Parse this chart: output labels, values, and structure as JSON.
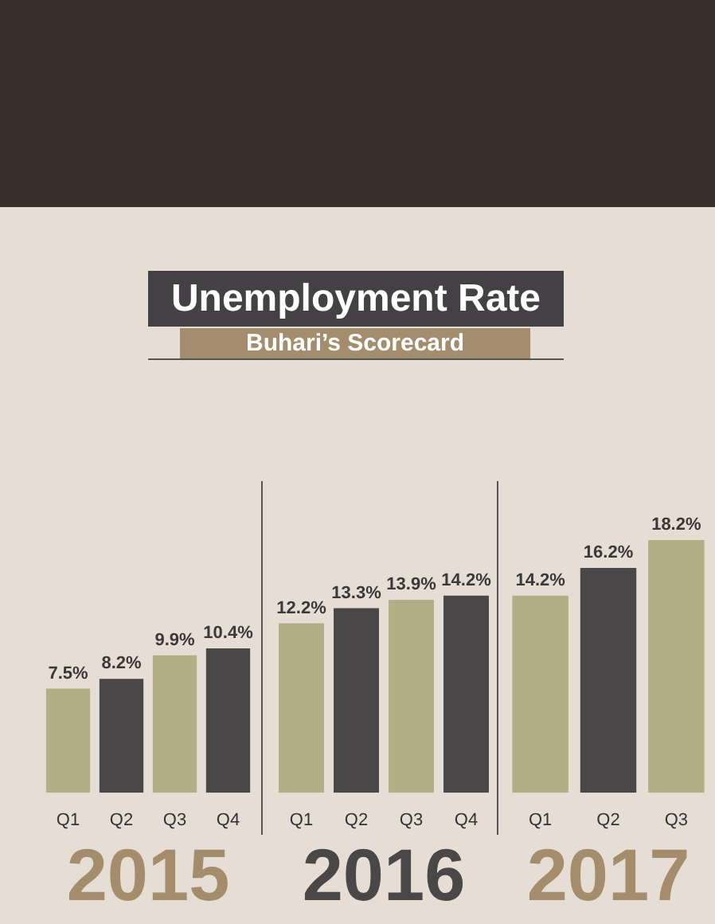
{
  "chart_data": [
    {
      "type": "other",
      "title": "Unemployment Rate",
      "subtitle": "Buhari’s Scorecard"
    },
    {
      "type": "bar",
      "xlabel": "2015",
      "categories": [
        "Q1",
        "Q2",
        "Q3",
        "Q4"
      ],
      "values": [
        7.5,
        8.2,
        9.9,
        10.4
      ],
      "colors": [
        "#b3ae85",
        "#4a4749",
        "#b3ae85",
        "#4a4749"
      ],
      "value_labels": [
        "7.5%",
        "8.2%",
        "9.9%",
        "10.4%"
      ]
    },
    {
      "type": "bar",
      "xlabel": "2016",
      "categories": [
        "Q1",
        "Q2",
        "Q3",
        "Q4"
      ],
      "values": [
        12.2,
        13.3,
        13.9,
        14.2
      ],
      "colors": [
        "#b3ae85",
        "#4a4749",
        "#b3ae85",
        "#4a4749"
      ],
      "value_labels": [
        "12.2%",
        "13.3%",
        "13.9%",
        "14.2%"
      ]
    },
    {
      "type": "bar",
      "xlabel": "2017",
      "categories": [
        "Q1",
        "Q2",
        "Q3"
      ],
      "values": [
        14.2,
        16.2,
        18.2
      ],
      "colors": [
        "#b3ae85",
        "#4a4749",
        "#b3ae85"
      ],
      "value_labels": [
        "14.2%",
        "16.2%",
        "18.2%"
      ]
    }
  ]
}
